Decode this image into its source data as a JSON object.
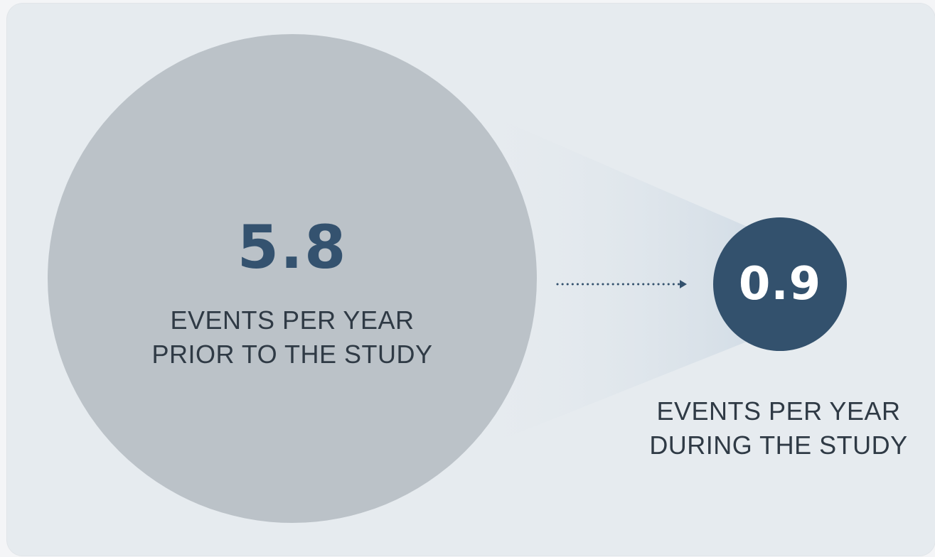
{
  "before": {
    "value": "5.8",
    "label_line1": "EVENTS PER YEAR",
    "label_line2": "PRIOR TO THE STUDY"
  },
  "after": {
    "value": "0.9",
    "label_line1": "EVENTS PER YEAR",
    "label_line2": "DURING THE STUDY"
  },
  "colors": {
    "background": "#e6ebef",
    "large_circle": "#bbc2c8",
    "small_circle": "#33516d",
    "value_text": "#34526f",
    "label_text": "#2f3a45"
  },
  "icons": {
    "arrow": "dotted-arrow-right-icon"
  }
}
